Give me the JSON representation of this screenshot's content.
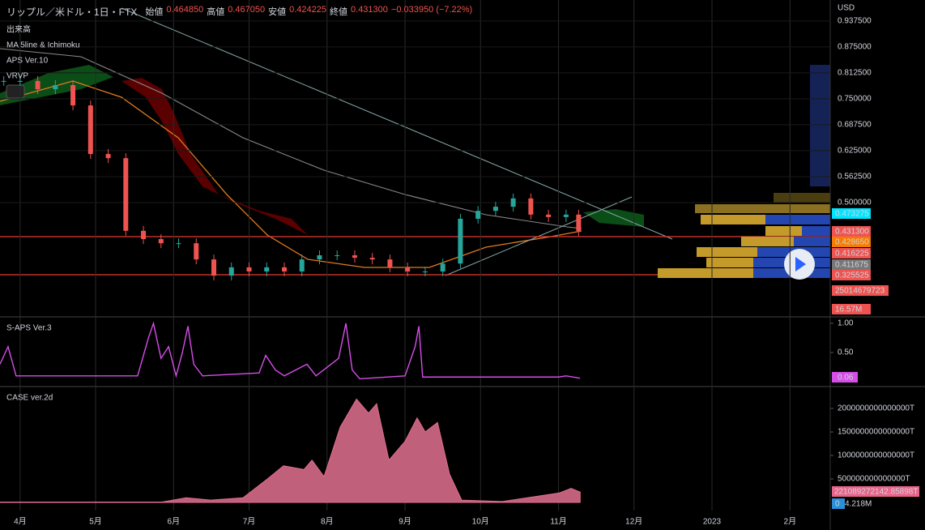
{
  "header": {
    "symbol": "リップル／米ドル・1日・FTX",
    "open_label": "始値",
    "open": "0.464850",
    "high_label": "高値",
    "high": "0.467050",
    "low_label": "安値",
    "low": "0.424225",
    "close_label": "終値",
    "close": "0.431300",
    "change": "−0.033950 (−7.22%)"
  },
  "indicators": [
    "出来高",
    "MA 5line & Ichimoku",
    "APS Ver.10",
    "VRVP"
  ],
  "price_labels": [
    "0.473275",
    "0.431300",
    "0.428650",
    "0.416225",
    "0.411675",
    "0.325525",
    "25014679723",
    "16.57M"
  ],
  "chart_data": [
    {
      "type": "candlestick",
      "currency": "USD",
      "x": [
        -6.5,
        0,
        7,
        14,
        21,
        28,
        35,
        42,
        49,
        56,
        63,
        70,
        77,
        84,
        91,
        98,
        105,
        112,
        119,
        126,
        133,
        140,
        147,
        154,
        161,
        168,
        175,
        182,
        189,
        196,
        203,
        210,
        217,
        222
      ],
      "values": [
        0.793,
        0.793,
        0.773,
        0.783,
        0.734,
        0.617,
        0.607,
        0.432,
        0.412,
        0.402,
        0.402,
        0.363,
        0.324,
        0.344,
        0.334,
        0.344,
        0.334,
        0.363,
        0.373,
        0.373,
        0.367,
        0.363,
        0.344,
        0.334,
        0.334,
        0.353,
        0.461,
        0.48,
        0.49,
        0.51,
        0.471,
        0.465,
        0.471,
        0.4313
      ],
      "up_color": "#26a69a",
      "down_color": "#ef5350",
      "xlim": [
        -8,
        322
      ],
      "ylim": [
        0.2266,
        0.988
      ],
      "xticks": [
        {
          "value": 0,
          "label": "4月"
        },
        {
          "value": 30,
          "label": "5月"
        },
        {
          "value": 61,
          "label": "6月"
        },
        {
          "value": 91,
          "label": "7月"
        },
        {
          "value": 122,
          "label": "8月"
        },
        {
          "value": 153,
          "label": "9月"
        },
        {
          "value": 183,
          "label": "10月"
        },
        {
          "value": 214,
          "label": "11月"
        },
        {
          "value": 244,
          "label": "12月"
        },
        {
          "value": 275,
          "label": "2023"
        },
        {
          "value": 306,
          "label": "2月"
        }
      ],
      "yticks": [
        {
          "value": 0.9375,
          "label": "0.937500"
        },
        {
          "value": 0.875,
          "label": "0.875000"
        },
        {
          "value": 0.8125,
          "label": "0.812500"
        },
        {
          "value": 0.75,
          "label": "0.750000"
        },
        {
          "value": 0.6875,
          "label": "0.687500"
        },
        {
          "value": 0.625,
          "label": "0.625000"
        },
        {
          "value": 0.5625,
          "label": "0.562500"
        },
        {
          "value": 0.5,
          "label": "0.500000"
        }
      ],
      "grid": true
    },
    {
      "type": "line",
      "title": "S-APS Ver.3",
      "color": "#d54ee8",
      "value_label": "0.06",
      "x": [
        -8,
        -4.8,
        -1.6,
        24,
        46.7,
        51,
        53,
        56,
        59,
        62,
        64.5,
        66.7,
        69,
        72.5,
        95,
        97.6,
        101.5,
        105,
        114,
        117.6,
        126.6,
        129.5,
        132,
        135,
        153,
        157,
        158.5,
        160,
        214,
        217,
        222.5
      ],
      "values": [
        0.3,
        0.6,
        0.1,
        0.1,
        0.1,
        0.75,
        1.0,
        0.4,
        0.6,
        0.1,
        0.5,
        0.95,
        0.3,
        0.1,
        0.15,
        0.45,
        0.2,
        0.1,
        0.3,
        0.1,
        0.4,
        1.0,
        0.2,
        0.05,
        0.1,
        0.6,
        0.95,
        0.08,
        0.08,
        0.1,
        0.06
      ],
      "xlim": [
        -8,
        322
      ],
      "ylim": [
        -0.083,
        1.11
      ],
      "yticks": [
        {
          "value": 1,
          "label": "1.00"
        },
        {
          "value": 0.5,
          "label": "0.50"
        }
      ]
    },
    {
      "type": "area",
      "title": "CASE ver.2d",
      "color": "#c0607a",
      "value_label": "221089272142.85898T",
      "zero_label": "0",
      "volume_label": "4.218M",
      "x": [
        -8,
        56.4,
        66,
        75.7,
        88.6,
        98.3,
        104.7,
        112.8,
        116,
        120.8,
        127.2,
        133.7,
        138.5,
        141.7,
        146.6,
        153,
        157.8,
        161,
        165.9,
        170.7,
        175.5,
        191.6,
        214.2,
        219,
        222.6
      ],
      "values": [
        10000000000000,
        10000000000000,
        100000000000000,
        50000000000000,
        100000000000000,
        500000000000000,
        780000000000000,
        700000000000000,
        900000000000000,
        550000000000000,
        1600000000000000,
        2200000000000000,
        1900000000000000,
        2100000000000000,
        900000000000000,
        1300000000000000,
        1800000000000000,
        1500000000000000,
        1700000000000000,
        600000000000000,
        50000000000000,
        20000000000000,
        200000000000000,
        300000000000000,
        220000000000000
      ],
      "xlim": [
        -8,
        322
      ],
      "ylim": [
        -172000000000000,
        2466000000000000
      ],
      "yticks": [
        {
          "value": 2000000000000000,
          "label": "2000000000000000T"
        },
        {
          "value": 1500000000000000,
          "label": "1500000000000000T"
        },
        {
          "value": 1000000000000000,
          "label": "1000000000000000T"
        },
        {
          "value": 500000000000000,
          "label": "500000000000000T"
        }
      ]
    }
  ]
}
